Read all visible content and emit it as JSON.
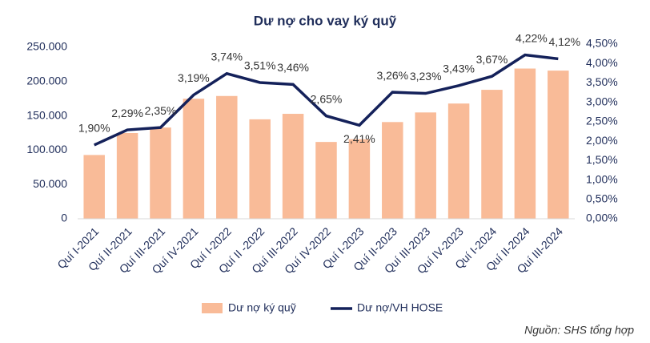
{
  "chart_data": {
    "type": "bar-line",
    "title": "Dư nợ cho vay ký quỹ",
    "source": "Nguồn: SHS tổng hợp",
    "categories": [
      "Quí I-2021",
      "Quí II-2021",
      "Quí III-2021",
      "Quí IV-2021",
      "Quí I-2022",
      "Quí II -2022",
      "Quí III-2022",
      "Quí IV-2022",
      "Quí I-2023",
      "Quí II-2023",
      "Quí III-2023",
      "Quí IV-2023",
      "Quí I-2024",
      "Quí II-2024",
      "Quí III-2024"
    ],
    "series": [
      {
        "name": "Dư nợ ký quỹ",
        "color": "#f9bb98",
        "values": [
          93000,
          125000,
          133000,
          175000,
          179000,
          145000,
          153000,
          112000,
          116000,
          141000,
          155000,
          168000,
          188000,
          219000,
          216000
        ]
      },
      {
        "name": "Dư nợ/VH HOSE",
        "color": "#14215a",
        "axis": "y2",
        "values": [
          1.9,
          2.29,
          2.35,
          3.19,
          3.74,
          3.51,
          3.46,
          2.65,
          2.41,
          3.26,
          3.23,
          3.43,
          3.67,
          4.22,
          4.12
        ],
        "value_labels": [
          "1,90%",
          "2,29%",
          "2,35%",
          "3,19%",
          "3,74%",
          "3,51%",
          "3,46%",
          "2,65%",
          "2,41%",
          "3,26%",
          "3,23%",
          "3,43%",
          "3,67%",
          "4,22%",
          "4,12%"
        ]
      }
    ],
    "ylim": [
      0,
      250000
    ],
    "yticks": [
      0,
      {
        "value": 50000,
        "label": "50.000"
      },
      {
        "value": 100000,
        "label": "100.000"
      },
      {
        "value": 150000,
        "label": "150.000"
      },
      {
        "value": 200000,
        "label": "200.000"
      },
      {
        "value": 250000,
        "label": "250.000"
      }
    ],
    "y2lim": [
      0,
      4.5
    ],
    "y2ticks": [
      {
        "value": 0,
        "label": "0,00%"
      },
      {
        "value": 0.5,
        "label": "0,50%"
      },
      {
        "value": 1,
        "label": "1,00%"
      },
      {
        "value": 1.5,
        "label": "1,50%"
      },
      {
        "value": 2,
        "label": "2,00%"
      },
      {
        "value": 2.5,
        "label": "2,50%"
      },
      {
        "value": 3,
        "label": "3,00%"
      },
      {
        "value": 3.5,
        "label": "3,50%"
      },
      {
        "value": 4,
        "label": "4,00%"
      },
      {
        "value": 4.5,
        "label": "4,50%"
      }
    ],
    "grid": false,
    "legend": "bottom"
  }
}
